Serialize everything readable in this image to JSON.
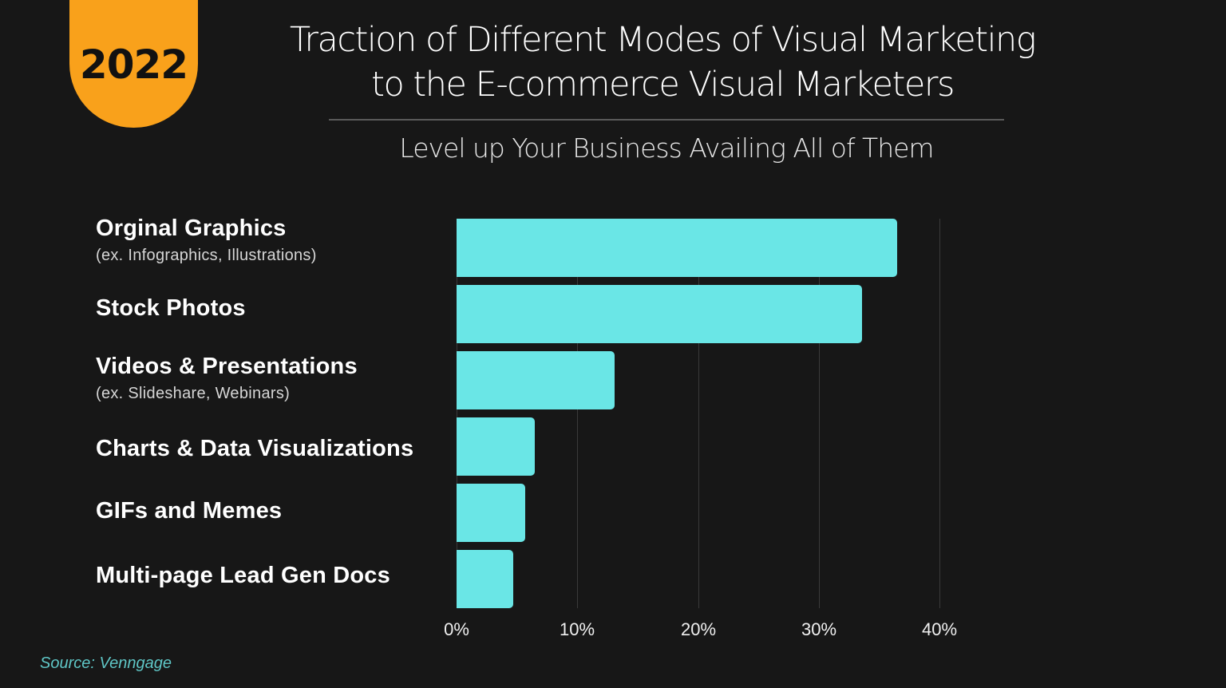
{
  "badge": {
    "year": "2022",
    "color": "#f9a11b"
  },
  "header": {
    "title_lines": [
      "Traction of Different Modes of Visual Marketing",
      "to the E-commerce Visual Marketers"
    ],
    "subtitle": "Level up Your Business Availing All of Them"
  },
  "categories": [
    {
      "label": "Orginal Graphics",
      "sub": "(ex. Infographics, Illustrations)"
    },
    {
      "label": "Stock Photos",
      "sub": ""
    },
    {
      "label": "Videos & Presentations",
      "sub": "(ex. Slideshare, Webinars)"
    },
    {
      "label": "Charts & Data Visualizations",
      "sub": ""
    },
    {
      "label": "GIFs and Memes",
      "sub": ""
    },
    {
      "label": "Multi-page Lead Gen Docs",
      "sub": ""
    }
  ],
  "axis": {
    "ticks": [
      "0%",
      "10%",
      "20%",
      "30%",
      "40%"
    ]
  },
  "source": "Source: Venngage",
  "colors": {
    "background": "#171717",
    "bar": "#6ae6e6",
    "gridline": "#3a3a3a",
    "source": "#5fc6c6"
  },
  "chart_data": {
    "type": "bar",
    "orientation": "horizontal",
    "title": "Traction of Different Modes of Visual Marketing to the E-commerce Visual Marketers",
    "subtitle": "Level up Your Business Availing All of Them",
    "categories": [
      "Orginal Graphics (ex. Infographics, Illustrations)",
      "Stock Photos",
      "Videos & Presentations (ex. Slideshare, Webinars)",
      "Charts & Data Visualizations",
      "GIFs and Memes",
      "Multi-page Lead Gen Docs"
    ],
    "values": [
      36.5,
      33.6,
      13.1,
      6.5,
      5.7,
      4.7
    ],
    "xlabel": "",
    "ylabel": "",
    "xlim": [
      0,
      40
    ],
    "x_ticks": [
      "0%",
      "10%",
      "20%",
      "30%",
      "40%"
    ],
    "grid": true,
    "legend": "none",
    "source": "Source: Venngage"
  }
}
